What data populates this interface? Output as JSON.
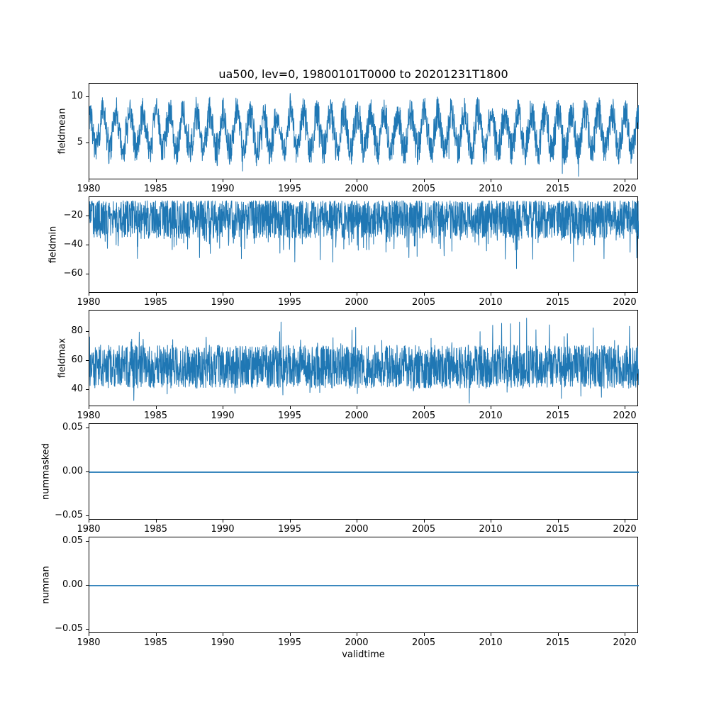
{
  "title": "ua500, lev=0, 19800101T0000 to 20201231T1800",
  "x_axis": {
    "label": "validtime",
    "lim": [
      1980,
      2021
    ],
    "ticks": [
      {
        "value": 1980,
        "label": "1980"
      },
      {
        "value": 1985,
        "label": "1985"
      },
      {
        "value": 1990,
        "label": "1990"
      },
      {
        "value": 1995,
        "label": "1995"
      },
      {
        "value": 2000,
        "label": "2000"
      },
      {
        "value": 2005,
        "label": "2005"
      },
      {
        "value": 2010,
        "label": "2010"
      },
      {
        "value": 2015,
        "label": "2015"
      },
      {
        "value": 2020,
        "label": "2020"
      }
    ]
  },
  "line_color": "#1f77b4",
  "chart_data": [
    {
      "type": "line",
      "ylabel": "fieldmean",
      "ylim": [
        1.0,
        11.5
      ],
      "yticks": [
        {
          "value": 10,
          "label": "10"
        },
        {
          "value": 5,
          "label": "5"
        }
      ],
      "observed_range": [
        1.5,
        11.1
      ],
      "description": "Dense 6-hourly time series with yearly seasonal cycle, mean about 6, oscillating between roughly 2 and 11",
      "series": {
        "kind": "seasonal_noise",
        "seed": 7,
        "points": 2400,
        "cycles": 41,
        "mean": 6.3,
        "seasonal_amp": 2.0,
        "noise_amp": 1.8,
        "spike_down_prob": 0.015,
        "spike_down_amp": 2.8,
        "spike_up_prob": 0.01,
        "spike_up_amp": 1.6,
        "clamp_min": 1.4,
        "clamp_max": 11.1
      },
      "line_width": 1.0
    },
    {
      "type": "line",
      "ylabel": "fieldmin",
      "ylim": [
        -73,
        -7
      ],
      "yticks": [
        {
          "value": -20,
          "label": "−20"
        },
        {
          "value": -40,
          "label": "−40"
        },
        {
          "value": -60,
          "label": "−60"
        }
      ],
      "observed_range": [
        -70,
        -9
      ],
      "description": "Dense noisy series clustered between about -10 and -35 with frequent downward spikes to -50 and rare spikes near -70",
      "series": {
        "kind": "floor_spikes",
        "seed": 13,
        "points": 2400,
        "top": -9.5,
        "band": 26,
        "band_pow": 1.3,
        "spike1_prob": 0.1,
        "spike1_amp": 18,
        "spike2_prob": 0.006,
        "spike2_amp": 26,
        "clamp_min": -70.5,
        "clamp_max": -9
      },
      "line_width": 1.0
    },
    {
      "type": "line",
      "ylabel": "fieldmax",
      "ylim": [
        28,
        95
      ],
      "yticks": [
        {
          "value": 80,
          "label": "80"
        },
        {
          "value": 60,
          "label": "60"
        },
        {
          "value": 40,
          "label": "40"
        }
      ],
      "observed_range": [
        30,
        93
      ],
      "description": "Dense noisy series clustered between about 40 and 75 with occasional upward spikes above 85 and dips near 30",
      "series": {
        "kind": "band_spikes",
        "seed": 99,
        "points": 2400,
        "mean": 56,
        "amp": 15,
        "spike_up_prob": 0.04,
        "spike_up_amp": 20,
        "spike_down_prob": 0.03,
        "spike_down_amp": 13,
        "clamp_min": 29,
        "clamp_max": 93
      },
      "line_width": 1.0
    },
    {
      "type": "line",
      "ylabel": "nummasked",
      "ylim": [
        -0.055,
        0.055
      ],
      "yticks": [
        {
          "value": 0.05,
          "label": "0.05"
        },
        {
          "value": 0,
          "label": "0.00"
        },
        {
          "value": -0.05,
          "label": "−0.05"
        }
      ],
      "observed_range": [
        0,
        0
      ],
      "description": "Constant zero line for the whole period",
      "series": {
        "kind": "constant",
        "value": 0,
        "points": 2
      },
      "line_width": 1.8
    },
    {
      "type": "line",
      "ylabel": "numnan",
      "ylim": [
        -0.055,
        0.055
      ],
      "yticks": [
        {
          "value": 0.05,
          "label": "0.05"
        },
        {
          "value": 0,
          "label": "0.00"
        },
        {
          "value": -0.05,
          "label": "−0.05"
        }
      ],
      "observed_range": [
        0,
        0
      ],
      "description": "Constant zero line for the whole period",
      "series": {
        "kind": "constant",
        "value": 0,
        "points": 2
      },
      "line_width": 1.8
    }
  ]
}
